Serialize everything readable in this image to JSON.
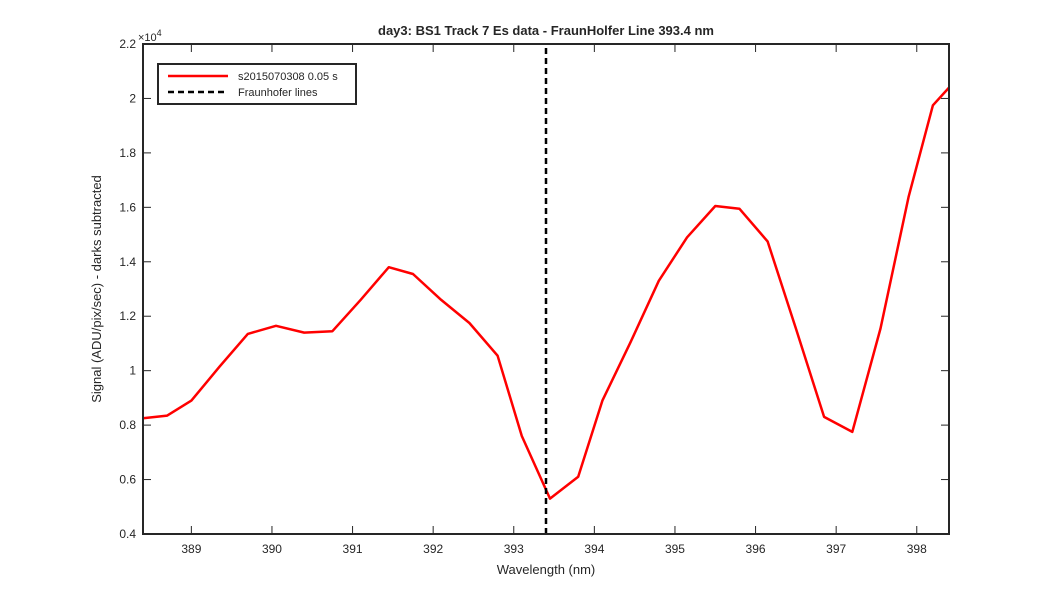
{
  "chart_data": {
    "type": "line",
    "title": "day3: BS1  Track 7 Es data - FraunHolfer Line 393.4 nm",
    "xlabel": "Wavelength (nm)",
    "ylabel": "Signal (ADU/pix/sec) - darks subtracted",
    "xlim": [
      388.4,
      398.4
    ],
    "ylim": [
      4000,
      22000
    ],
    "x_ticks": [
      389,
      390,
      391,
      392,
      393,
      394,
      395,
      396,
      397,
      398
    ],
    "y_ticks": [
      4000,
      6000,
      8000,
      10000,
      12000,
      14000,
      16000,
      18000,
      20000,
      22000
    ],
    "y_tick_labels": [
      "0.4",
      "0.6",
      "0.8",
      "1",
      "1.2",
      "1.4",
      "1.6",
      "1.8",
      "2",
      "2.2"
    ],
    "y_exponent_label": "×10",
    "y_exponent_power": "4",
    "grid": false,
    "legend_position": "top-left",
    "series": [
      {
        "name": "s2015070308 0.05 s",
        "color": "#ff0000",
        "style": "solid",
        "x": [
          388.4,
          388.7,
          389.0,
          389.35,
          389.7,
          390.05,
          390.4,
          390.75,
          391.1,
          391.45,
          391.75,
          392.1,
          392.45,
          392.8,
          393.1,
          393.45,
          393.8,
          394.1,
          394.45,
          394.8,
          395.15,
          395.5,
          395.8,
          396.15,
          396.5,
          396.85,
          397.2,
          397.55,
          397.9,
          398.2,
          398.4
        ],
        "y": [
          8250,
          8350,
          8900,
          10150,
          11350,
          11650,
          11400,
          11450,
          12600,
          13800,
          13550,
          12600,
          11750,
          10550,
          7600,
          5300,
          6100,
          8900,
          11050,
          13300,
          14900,
          16050,
          15950,
          14750,
          11550,
          8300,
          7750,
          11550,
          16400,
          19750,
          20400
        ]
      },
      {
        "name": "Fraunhofer lines",
        "color": "#000000",
        "style": "dashed",
        "x": [
          393.4,
          393.4
        ],
        "y": [
          4000,
          22000
        ]
      }
    ]
  }
}
